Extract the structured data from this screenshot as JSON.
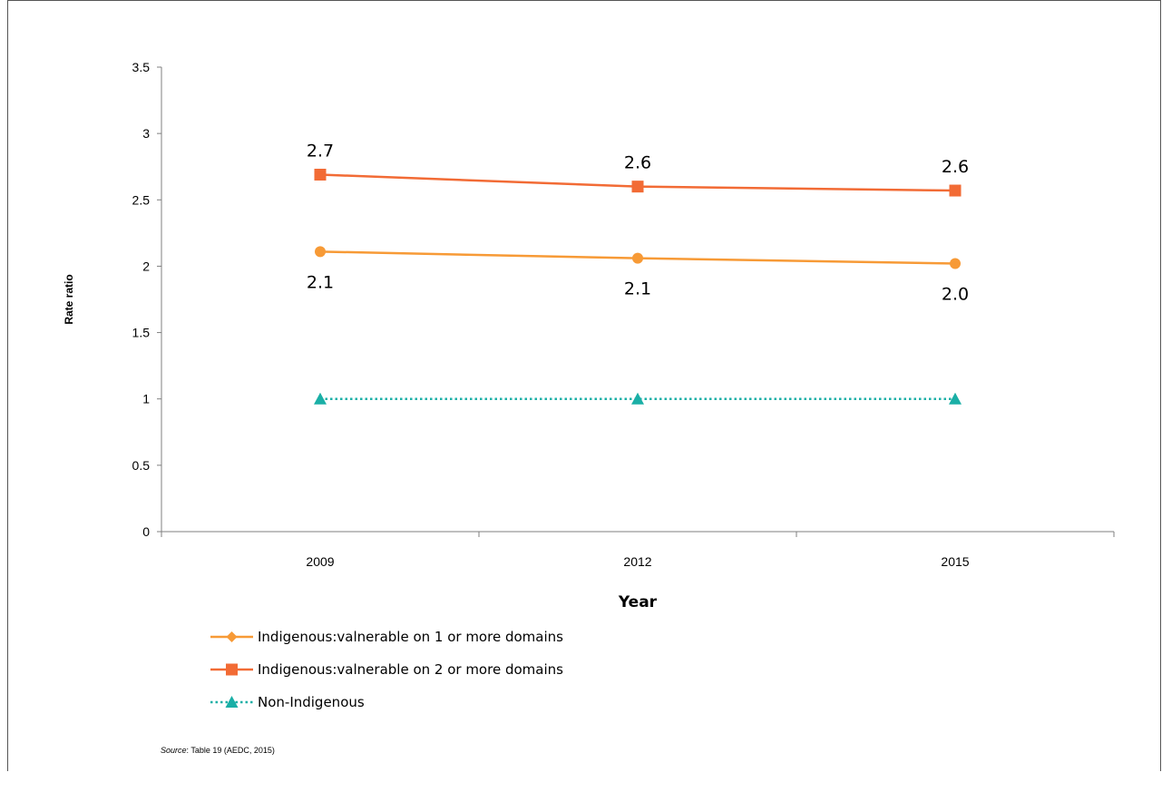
{
  "chart_data": {
    "type": "line",
    "xlabel": "Year",
    "ylabel": "Rate ratio",
    "categories": [
      "2009",
      "2012",
      "2015"
    ],
    "ylim": [
      0,
      3.5
    ],
    "yticks": [
      "0",
      "0.5",
      "1",
      "1.5",
      "2",
      "2.5",
      "3",
      "3.5"
    ],
    "grid": false,
    "legend_position": "bottom-left",
    "series": [
      {
        "name": "Indigenous:valnerable on 1 or more domains",
        "values": [
          2.11,
          2.06,
          2.02
        ],
        "labels": [
          "2.1",
          "2.1",
          "2.0"
        ],
        "label_position": "below",
        "color": "#F79A36",
        "marker": "circle",
        "line": "solid"
      },
      {
        "name": "Indigenous:valnerable on 2 or more domains",
        "values": [
          2.69,
          2.6,
          2.57
        ],
        "labels": [
          "2.7",
          "2.6",
          "2.6"
        ],
        "label_position": "above",
        "color": "#F26B35",
        "marker": "square",
        "line": "solid"
      },
      {
        "name": "Non-Indigenous",
        "values": [
          1,
          1,
          1
        ],
        "labels": [],
        "label_position": "none",
        "color": "#1AAFA6",
        "marker": "triangle",
        "line": "dotted"
      }
    ]
  },
  "source": {
    "prefix": "Source",
    "text": ": Table 19 (AEDC, 2015)"
  }
}
